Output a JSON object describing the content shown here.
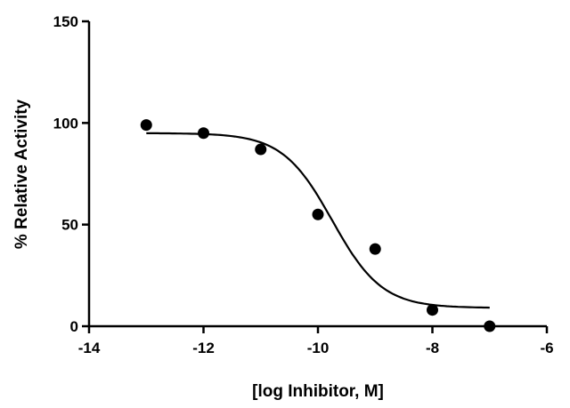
{
  "chart_data": {
    "type": "scatter",
    "title": "",
    "xlabel": "[log Inhibitor, M]",
    "ylabel": "% Relative Activity",
    "xlim": [
      -14,
      -6
    ],
    "ylim": [
      0,
      150
    ],
    "x_ticks": [
      -14,
      -12,
      -10,
      -8,
      -6
    ],
    "y_ticks": [
      0,
      50,
      100,
      150
    ],
    "x_tick_labels": [
      "-14",
      "-12",
      "-10",
      "-8",
      "-6"
    ],
    "y_tick_labels": [
      "0",
      "50",
      "100",
      "150"
    ],
    "grid": false,
    "legend": "none",
    "series": [
      {
        "kind": "points",
        "x": [
          -13,
          -12,
          -11,
          -10,
          -9,
          -8,
          -7
        ],
        "y": [
          99,
          95,
          87,
          55,
          38,
          8,
          0
        ]
      },
      {
        "kind": "fit-curve",
        "model": "sigmoidal dose-response",
        "bottom": 9,
        "top": 95,
        "log_ic50": -9.75,
        "hill_slope": -1,
        "x_range": [
          -13,
          -7
        ]
      }
    ],
    "colors": {
      "marker": "#000000",
      "line": "#000000"
    }
  }
}
